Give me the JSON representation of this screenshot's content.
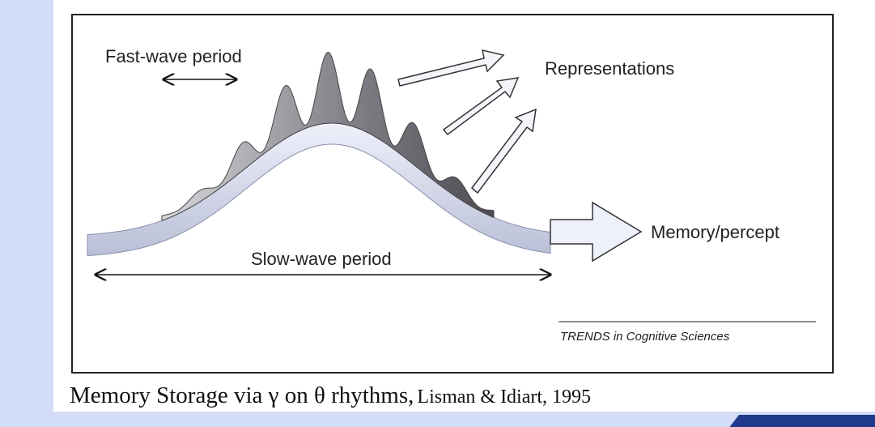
{
  "figure": {
    "labels": {
      "fast_wave": "Fast-wave period",
      "representations": "Representations",
      "memory": "Memory/percept",
      "slow_wave": "Slow-wave period"
    },
    "source": "TRENDS in Cognitive Sciences"
  },
  "caption": {
    "title": "Memory Storage via γ on θ rhythms,",
    "citation": "Lisman & Idiart, 1995"
  }
}
